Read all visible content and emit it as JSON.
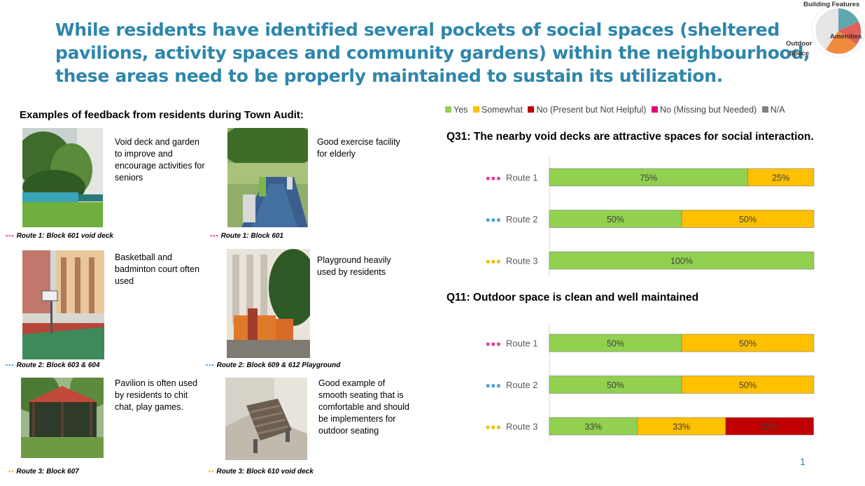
{
  "title_lines": [
    "While residents have identified several pockets of social spaces (sheltered",
    "pavilions, activity spaces and community gardens) within the neighbourhood,",
    "these areas need to be properly maintained to sustain its utilization."
  ],
  "badge": {
    "labels": [
      "Building Features",
      "Amenities",
      "Outdoor",
      "Space"
    ],
    "colors": {
      "teal": "#5fa8b0",
      "red": "#e0605a",
      "orange": "#f08a3c",
      "grey": "#e6e6e6"
    }
  },
  "feedback": {
    "heading": "Examples of feedback from residents during Town Audit:",
    "items": [
      {
        "desc": [
          "Void deck and garden",
          "to improve and",
          "encourage activities for",
          "seniors"
        ],
        "dots": "▪▪▪",
        "dot_color": "#e73c9b",
        "caption": "Route 1: Block 601 void deck"
      },
      {
        "desc": [
          "Good exercise facility",
          "for elderly"
        ],
        "dots": "▪▪▪",
        "dot_color": "#e73c9b",
        "caption": "Route 1: Block 601"
      },
      {
        "desc": [
          "Basketball and",
          "badminton court often",
          "used"
        ],
        "dots": "▪▪▪",
        "dot_color": "#4a9fd8",
        "caption": "Route 2: Block 603 & 604"
      },
      {
        "desc": [
          "Playground heavily",
          "used by residents"
        ],
        "dots": "▪▪▪",
        "dot_color": "#4a9fd8",
        "caption": "Route 2: Block 609 & 612 Playground"
      },
      {
        "desc": [
          "Pavilion is often used",
          "by residents to chit",
          "chat, play games."
        ],
        "dots": "▪▪",
        "dot_color": "#f4b800",
        "caption": "Route 3: Block 607"
      },
      {
        "desc": [
          "Good example of",
          "smooth seating that is",
          "comfortable and should",
          "be implementers for",
          "outdoor seating"
        ],
        "dots": "▪▪",
        "dot_color": "#f4b800",
        "caption": "Route 3: Block 610 void deck"
      }
    ]
  },
  "legend": [
    {
      "label": "Yes",
      "color": "#92d050"
    },
    {
      "label": "Somewhat",
      "color": "#ffc000"
    },
    {
      "label": "No (Present but Not Helpful)",
      "color": "#c00000"
    },
    {
      "label": "No (Missing but Needed)",
      "color": "#e6007e"
    },
    {
      "label": "N/A",
      "color": "#808080"
    }
  ],
  "chart_data": [
    {
      "type": "bar",
      "orientation": "horizontal",
      "stacked": "percent",
      "title": "Q31:  The nearby void decks are attractive spaces for social interaction.",
      "categories": [
        "Route 1",
        "Route 2",
        "Route 3"
      ],
      "category_markers": [
        {
          "dots": "▪▪▪",
          "color": "#e73c9b"
        },
        {
          "dots": "▪▪▪",
          "color": "#4a9fd8"
        },
        {
          "dots": "▪▪▪",
          "color": "#f4b800"
        }
      ],
      "series": [
        {
          "name": "Yes",
          "color": "#92d050",
          "values": [
            75,
            50,
            100
          ]
        },
        {
          "name": "Somewhat",
          "color": "#ffc000",
          "values": [
            25,
            50,
            0
          ]
        },
        {
          "name": "No (Present but Not Helpful)",
          "color": "#c00000",
          "values": [
            0,
            0,
            0
          ]
        }
      ],
      "data_labels": [
        [
          "75%",
          "25%",
          null
        ],
        [
          "50%",
          "50%",
          null
        ],
        [
          "100%",
          null,
          null
        ]
      ],
      "xlim": [
        0,
        100
      ]
    },
    {
      "type": "bar",
      "orientation": "horizontal",
      "stacked": "percent",
      "title": "Q11: Outdoor space is clean and well maintained",
      "categories": [
        "Route 1",
        "Route 2",
        "Route 3"
      ],
      "category_markers": [
        {
          "dots": "▪▪▪",
          "color": "#e73c9b"
        },
        {
          "dots": "▪▪▪",
          "color": "#4a9fd8"
        },
        {
          "dots": "▪▪▪",
          "color": "#f4b800"
        }
      ],
      "series": [
        {
          "name": "Yes",
          "color": "#92d050",
          "values": [
            50,
            50,
            33.3
          ]
        },
        {
          "name": "Somewhat",
          "color": "#ffc000",
          "values": [
            50,
            50,
            33.3
          ]
        },
        {
          "name": "No (Present but Not Helpful)",
          "color": "#c00000",
          "values": [
            0,
            0,
            33.3
          ]
        }
      ],
      "data_labels": [
        [
          "50%",
          "50%",
          null
        ],
        [
          "50%",
          "50%",
          null
        ],
        [
          "33%",
          "33%",
          "33%"
        ]
      ],
      "xlim": [
        0,
        100
      ]
    }
  ],
  "page_number": "1"
}
